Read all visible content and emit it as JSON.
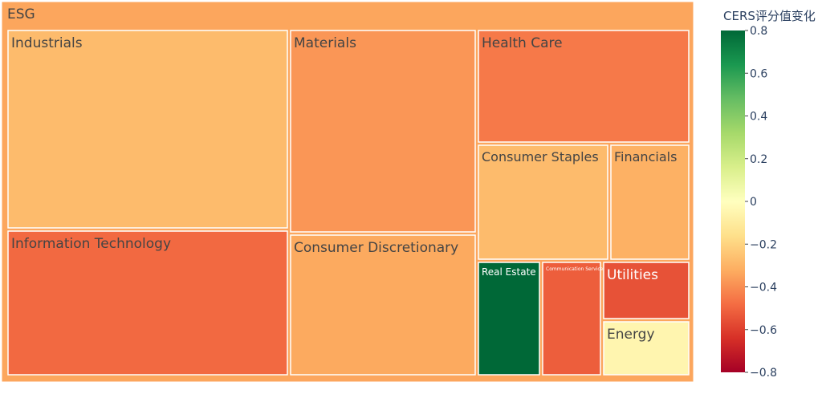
{
  "chart_data": {
    "type": "treemap",
    "root": {
      "label": "ESG",
      "value": -0.34
    },
    "children": [
      {
        "label": "Industrials",
        "value": -0.28
      },
      {
        "label": "Information Technology",
        "value": -0.49
      },
      {
        "label": "Materials",
        "value": -0.38
      },
      {
        "label": "Consumer Discretionary",
        "value": -0.33
      },
      {
        "label": "Health Care",
        "value": -0.45
      },
      {
        "label": "Consumer Staples",
        "value": -0.28
      },
      {
        "label": "Financials",
        "value": -0.31
      },
      {
        "label": "Real Estate",
        "value": 0.8
      },
      {
        "label": "Communication Services",
        "value": -0.52
      },
      {
        "label": "Utilities",
        "value": -0.55
      },
      {
        "label": "Energy",
        "value": -0.05
      }
    ],
    "colorbar": {
      "title": "CERS评分值变化",
      "range": [
        -0.8,
        0.8
      ],
      "ticks": [
        "0.8",
        "0.6",
        "0.4",
        "0.2",
        "0",
        "−0.2",
        "−0.4",
        "−0.6",
        "−0.8"
      ],
      "tick_values": [
        0.8,
        0.6,
        0.4,
        0.2,
        0,
        -0.2,
        -0.4,
        -0.6,
        -0.8
      ],
      "colorscale": [
        "#a50026",
        "#d73027",
        "#f46d43",
        "#fdae61",
        "#fee08b",
        "#ffffbf",
        "#d9ef8b",
        "#a6d96a",
        "#66bd63",
        "#1a9850",
        "#006837"
      ]
    }
  }
}
